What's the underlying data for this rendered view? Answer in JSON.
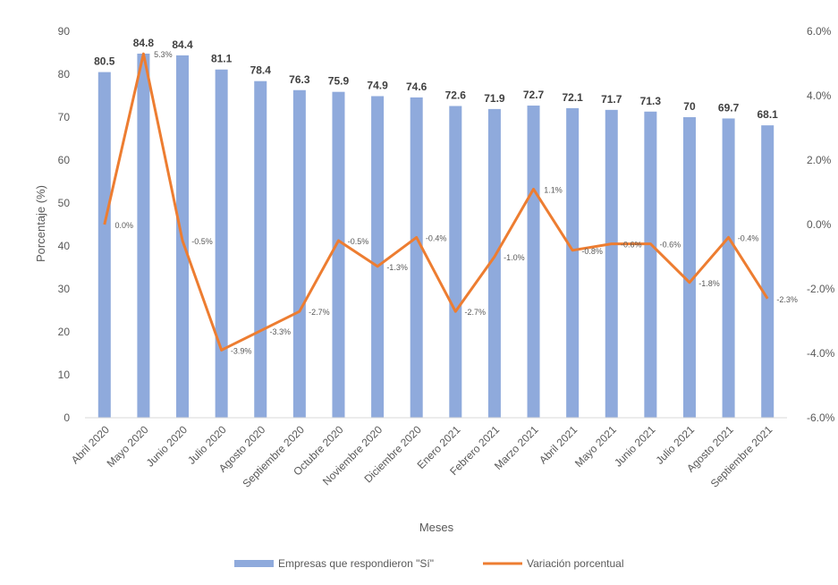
{
  "chart_data": {
    "type": "bar",
    "title": "",
    "xlabel": "Meses",
    "ylabel": "Porcentaje (%)",
    "categories": [
      "Abril 2020",
      "Mayo 2020",
      "Junio 2020",
      "Julio 2020",
      "Agosto 2020",
      "Septiembre 2020",
      "Octubre 2020",
      "Noviembre 2020",
      "Diciembre 2020",
      "Enero 2021",
      "Febrero 2021",
      "Marzo 2021",
      "Abril 2021",
      "Mayo 2021",
      "Junio 2021",
      "Julio 2021",
      "Agosto 2021",
      "Septiembre 2021"
    ],
    "ylim": [
      0,
      90
    ],
    "yticks": [
      "0",
      "10",
      "20",
      "30",
      "40",
      "50",
      "60",
      "70",
      "80",
      "90"
    ],
    "y2lim": [
      -6.0,
      6.0
    ],
    "y2ticks": [
      "-6.0%",
      "-4.0%",
      "-2.0%",
      "0.0%",
      "2.0%",
      "4.0%",
      "6.0%"
    ],
    "grid": false,
    "legend_position": "bottom",
    "series": [
      {
        "name": "Empresas que respondieron \"Sí\"",
        "type": "bar",
        "axis": "left",
        "color": "#8faadc",
        "values": [
          80.5,
          84.8,
          84.4,
          81.1,
          78.4,
          76.3,
          75.9,
          74.9,
          74.6,
          72.6,
          71.9,
          72.7,
          72.1,
          71.7,
          71.3,
          70,
          69.7,
          68.1
        ],
        "labels": [
          "80.5",
          "84.8",
          "84.4",
          "81.1",
          "78.4",
          "76.3",
          "75.9",
          "74.9",
          "74.6",
          "72.6",
          "71.9",
          "72.7",
          "72.1",
          "71.7",
          "71.3",
          "70",
          "69.7",
          "68.1"
        ]
      },
      {
        "name": "Variación porcentual",
        "type": "line",
        "axis": "right",
        "color": "#ed7d31",
        "values": [
          0.0,
          5.3,
          -0.5,
          -3.9,
          -3.3,
          -2.7,
          -0.5,
          -1.3,
          -0.4,
          -2.7,
          -1.0,
          1.1,
          -0.8,
          -0.6,
          -0.6,
          -1.8,
          -0.4,
          -2.3
        ],
        "labels": [
          "0.0%",
          "5.3%",
          "-0.5%",
          "-3.9%",
          "-3.3%",
          "-2.7%",
          "-0.5%",
          "-1.3%",
          "-0.4%",
          "-2.7%",
          "-1.0%",
          "1.1%",
          "-0.8%",
          "-0.6%",
          "-0.6%",
          "-1.8%",
          "-0.4%",
          "-2.3%"
        ]
      }
    ]
  }
}
